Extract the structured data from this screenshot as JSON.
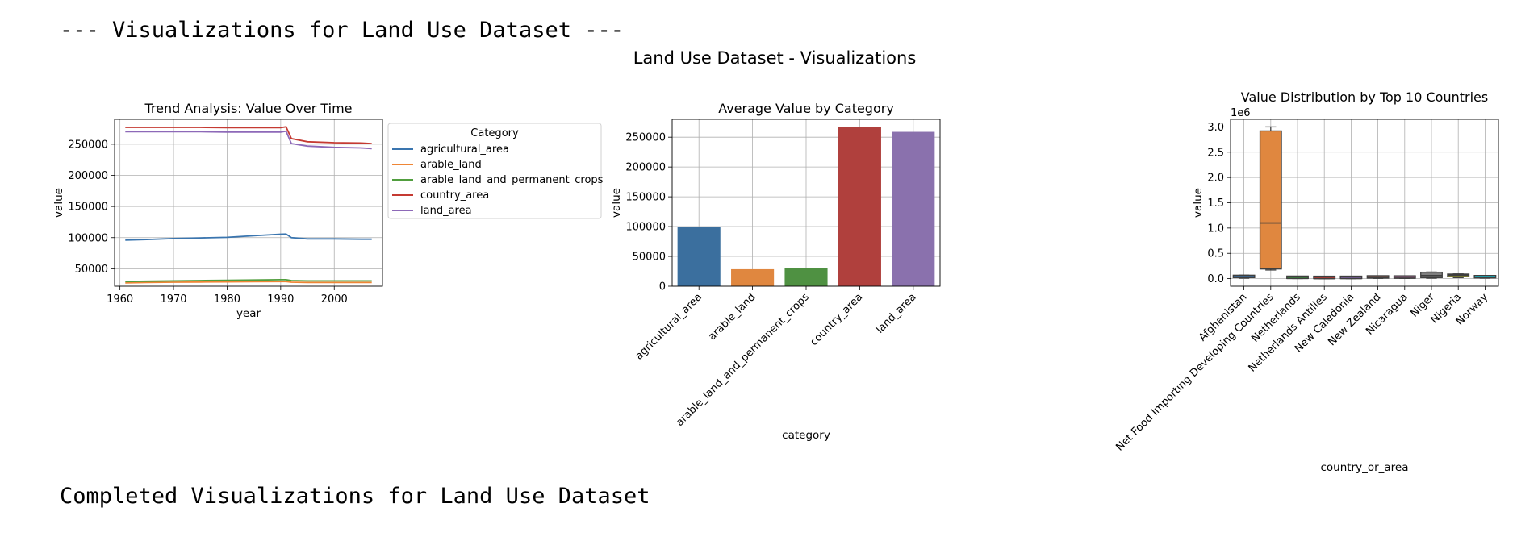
{
  "header_text": "--- Visualizations for Land Use Dataset ---",
  "suptitle": "Land Use Dataset - Visualizations",
  "footer_text": "Completed Visualizations for Land Use Dataset",
  "chart_data": [
    {
      "type": "line",
      "title": "Trend Analysis: Value Over Time",
      "xlabel": "year",
      "ylabel": "value",
      "xlim": [
        1959,
        2009
      ],
      "ylim": [
        22000,
        290000
      ],
      "xticks": [
        1960,
        1970,
        1980,
        1990,
        2000
      ],
      "yticks": [
        50000,
        100000,
        150000,
        200000,
        250000
      ],
      "grid": true,
      "legend": {
        "title": "Category",
        "placement": "outside-right"
      },
      "x": [
        1961,
        1965,
        1970,
        1975,
        1980,
        1985,
        1990,
        1991,
        1992,
        1995,
        2000,
        2005,
        2007
      ],
      "series": [
        {
          "name": "agricultural_area",
          "color": "#3a75af",
          "values": [
            96000,
            97000,
            98500,
            99500,
            100500,
            103000,
            105500,
            105800,
            100000,
            98000,
            98000,
            97500,
            97500
          ]
        },
        {
          "name": "arable_land",
          "color": "#ef8636",
          "values": [
            27500,
            28000,
            28500,
            28700,
            29000,
            29300,
            29500,
            29500,
            28500,
            28000,
            28000,
            28000,
            28000
          ]
        },
        {
          "name": "arable_land_and_permanent_crops",
          "color": "#519e3e",
          "values": [
            29500,
            30000,
            30500,
            31000,
            31500,
            32000,
            32500,
            32500,
            31000,
            30500,
            30500,
            30500,
            30500
          ]
        },
        {
          "name": "country_area",
          "color": "#c53a32",
          "values": [
            277000,
            277000,
            277000,
            277000,
            276500,
            276500,
            276500,
            278000,
            259000,
            254000,
            252500,
            252000,
            251000
          ]
        },
        {
          "name": "land_area",
          "color": "#8d69b8",
          "values": [
            270000,
            270000,
            270000,
            270000,
            269500,
            269500,
            269500,
            271000,
            251000,
            247000,
            245000,
            244000,
            243000
          ]
        }
      ]
    },
    {
      "type": "bar",
      "title": "Average Value by Category",
      "xlabel": "category",
      "ylabel": "value",
      "ylim": [
        0,
        280000
      ],
      "yticks": [
        0,
        50000,
        100000,
        150000,
        200000,
        250000
      ],
      "grid": true,
      "categories": [
        "agricultural_area",
        "arable_land",
        "arable_land_and_permanent_crops",
        "country_area",
        "land_area"
      ],
      "values": [
        99500,
        28500,
        31000,
        267000,
        259000
      ],
      "colors": [
        "#3b6f9e",
        "#e0873f",
        "#4f9142",
        "#b0403d",
        "#8a71ad"
      ]
    },
    {
      "type": "box",
      "title": "Value Distribution by Top 10 Countries",
      "xlabel": "country_or_area",
      "ylabel": "value",
      "offset_label": "1e6",
      "ylim": [
        -0.15,
        3.15
      ],
      "yticks": [
        0.0,
        0.5,
        1.0,
        1.5,
        2.0,
        2.5,
        3.0
      ],
      "yticklabels": [
        "0.0",
        "0.5",
        "1.0",
        "1.5",
        "2.0",
        "2.5",
        "3.0"
      ],
      "grid": true,
      "categories": [
        "Afghanistan",
        "Net Food Importing Developing Countries",
        "Netherlands",
        "Netherlands Antilles",
        "New Caledonia",
        "New Zealand",
        "Nicaragua",
        "Niger",
        "Nigeria",
        "Norway"
      ],
      "boxes": [
        {
          "min": 0.01,
          "q1": 0.02,
          "median": 0.035,
          "q3": 0.065,
          "max": 0.068,
          "color": "#3a75af"
        },
        {
          "min": 0.17,
          "q1": 0.19,
          "median": 1.1,
          "q3": 2.92,
          "max": 3.0,
          "color": "#e0873f"
        },
        {
          "min": 0.002,
          "q1": 0.003,
          "median": 0.004,
          "q3": 0.005,
          "max": 0.006,
          "color": "#3aa03a"
        },
        {
          "min": 0.0005,
          "q1": 0.0006,
          "median": 0.0008,
          "q3": 0.001,
          "max": 0.001,
          "color": "#c53a32"
        },
        {
          "min": 0.001,
          "q1": 0.0015,
          "median": 0.002,
          "q3": 0.003,
          "max": 0.003,
          "color": "#8d69b8"
        },
        {
          "min": 0.005,
          "q1": 0.01,
          "median": 0.015,
          "q3": 0.027,
          "max": 0.03,
          "color": "#8c564b"
        },
        {
          "min": 0.005,
          "q1": 0.008,
          "median": 0.01,
          "q3": 0.013,
          "max": 0.015,
          "color": "#e377c2"
        },
        {
          "min": 0.01,
          "q1": 0.02,
          "median": 0.06,
          "q3": 0.127,
          "max": 0.13,
          "color": "#7f7f7f"
        },
        {
          "min": 0.02,
          "q1": 0.04,
          "median": 0.07,
          "q3": 0.09,
          "max": 0.093,
          "color": "#bcbd22"
        },
        {
          "min": 0.01,
          "q1": 0.015,
          "median": 0.02,
          "q3": 0.035,
          "max": 0.04,
          "color": "#17becf"
        }
      ]
    }
  ]
}
